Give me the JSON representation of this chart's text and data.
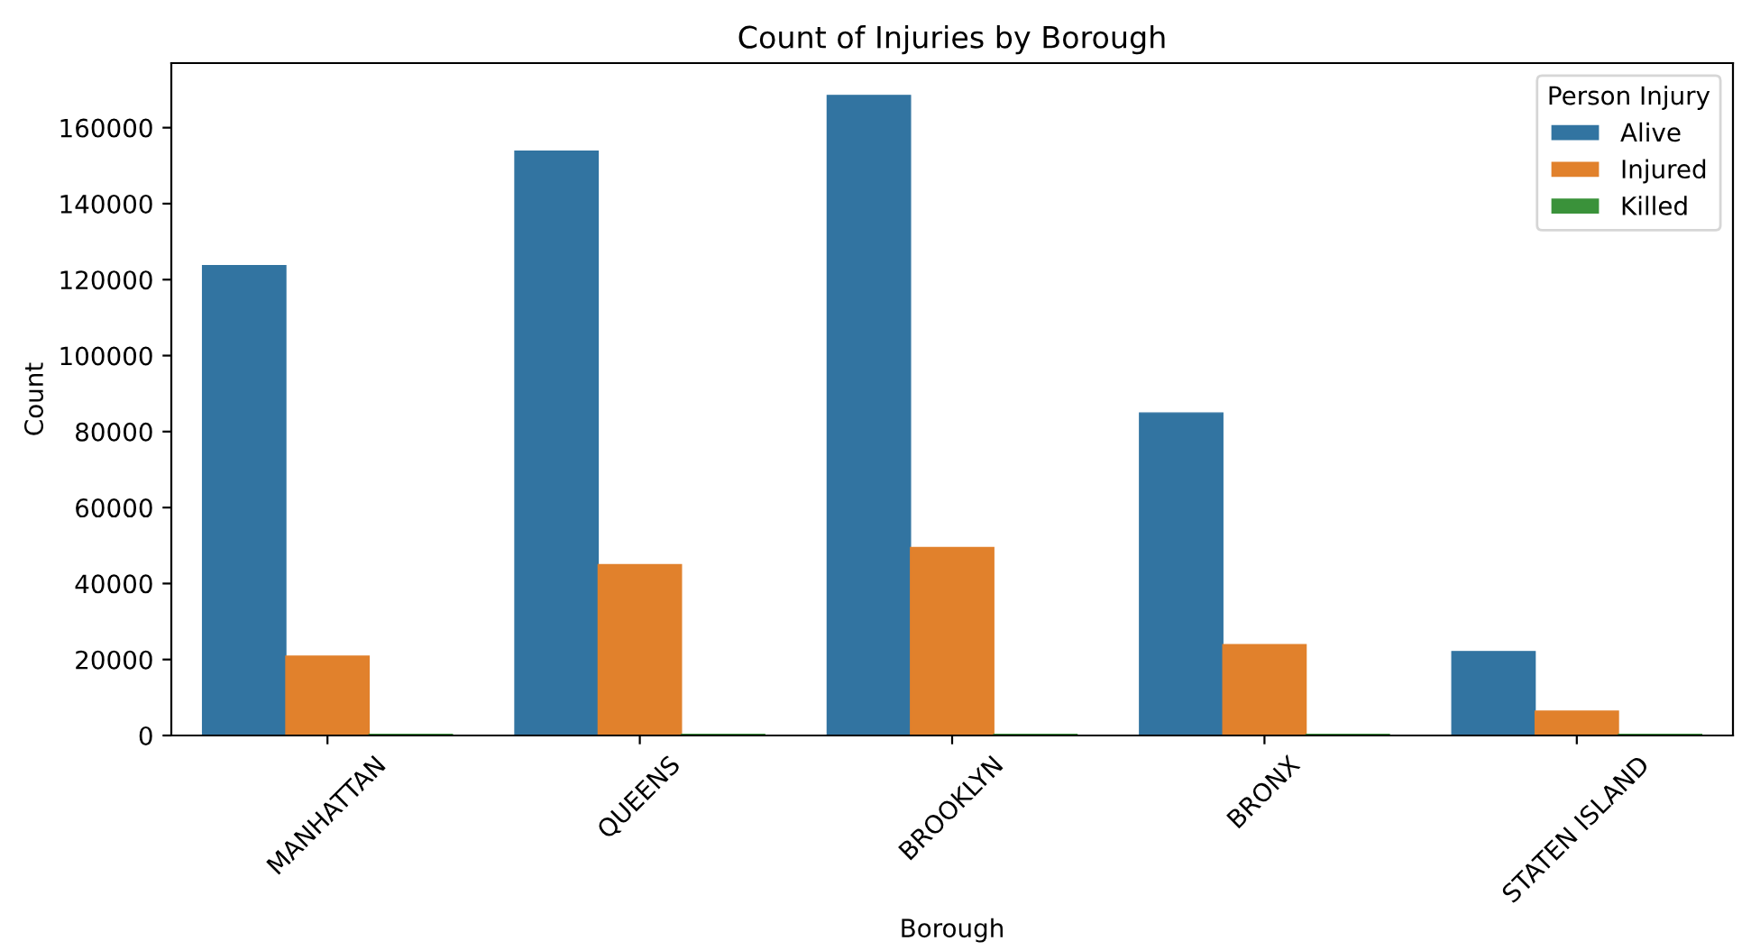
{
  "chart_data": {
    "type": "bar",
    "title": "Count of Injuries by Borough",
    "xlabel": "Borough",
    "ylabel": "Count",
    "legend_title": "Person Injury",
    "categories": [
      "MANHATTAN",
      "QUEENS",
      "BROOKLYN",
      "BRONX",
      "STATEN ISLAND"
    ],
    "series": [
      {
        "name": "Alive",
        "color": "#3274a1",
        "values": [
          123700,
          153800,
          168500,
          84900,
          22100
        ]
      },
      {
        "name": "Injured",
        "color": "#e1812c",
        "values": [
          20900,
          45000,
          49500,
          23900,
          6400
        ]
      },
      {
        "name": "Killed",
        "color": "#3a923a",
        "values": [
          300,
          300,
          300,
          300,
          300
        ]
      }
    ],
    "ylim": [
      0,
      177000
    ],
    "yticks": [
      0,
      20000,
      40000,
      60000,
      80000,
      100000,
      120000,
      140000,
      160000
    ],
    "grid": false,
    "legend": "top right"
  }
}
